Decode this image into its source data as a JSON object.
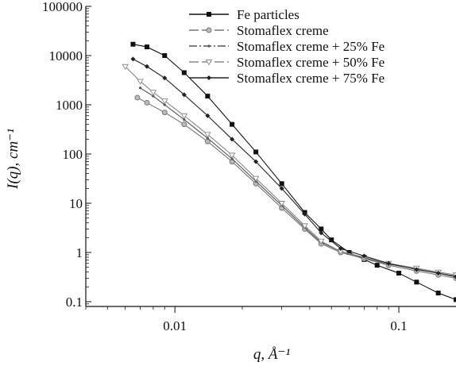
{
  "chart_data": {
    "type": "line",
    "xlabel": "q, Å⁻¹",
    "ylabel": "I(q), cm⁻¹",
    "x_scale": "log",
    "y_scale": "log",
    "xlim": [
      0.004,
      0.18
    ],
    "ylim": [
      0.08,
      100000
    ],
    "x_ticks": [
      {
        "v": 0.01,
        "label": "0.01"
      },
      {
        "v": 0.1,
        "label": "0.1"
      }
    ],
    "y_ticks": [
      {
        "v": 0.1,
        "label": "0.1"
      },
      {
        "v": 1,
        "label": "1"
      },
      {
        "v": 10,
        "label": "10"
      },
      {
        "v": 100,
        "label": "100"
      },
      {
        "v": 1000,
        "label": "1000"
      },
      {
        "v": 10000,
        "label": "10000"
      },
      {
        "v": 100000,
        "label": "100000"
      }
    ],
    "grid": false,
    "legend_position": "top-right",
    "series": [
      {
        "name": "Fe particles",
        "marker": "square",
        "color": "#111111",
        "x": [
          0.0065,
          0.0075,
          0.009,
          0.011,
          0.014,
          0.018,
          0.023,
          0.03,
          0.038,
          0.045,
          0.05,
          0.06,
          0.07,
          0.08,
          0.1,
          0.12,
          0.15,
          0.18
        ],
        "y": [
          17000,
          15000,
          10000,
          4500,
          1500,
          400,
          110,
          25,
          6.5,
          3,
          1.8,
          1.0,
          0.72,
          0.55,
          0.38,
          0.25,
          0.15,
          0.11
        ]
      },
      {
        "name": "Stomaflex creme",
        "marker": "circle",
        "color": "#777777",
        "x": [
          0.0068,
          0.0075,
          0.009,
          0.011,
          0.014,
          0.018,
          0.023,
          0.03,
          0.038,
          0.045,
          0.055,
          0.07,
          0.09,
          0.12,
          0.15,
          0.18
        ],
        "y": [
          1400,
          1100,
          700,
          400,
          180,
          70,
          25,
          8,
          3,
          1.5,
          1.0,
          0.75,
          0.55,
          0.42,
          0.35,
          0.3
        ]
      },
      {
        "name": "Stomaflex creme + 25% Fe",
        "marker": "dot",
        "color": "#555555",
        "x": [
          0.007,
          0.008,
          0.009,
          0.011,
          0.014,
          0.018,
          0.023,
          0.03,
          0.038,
          0.045,
          0.055,
          0.07,
          0.09,
          0.12,
          0.15,
          0.18
        ],
        "y": [
          2200,
          1500,
          1000,
          500,
          210,
          80,
          28,
          9,
          3.2,
          1.6,
          1.05,
          0.78,
          0.58,
          0.46,
          0.38,
          0.33
        ]
      },
      {
        "name": "Stomaflex creme + 50% Fe",
        "marker": "triangle-down",
        "color": "#888888",
        "x": [
          0.006,
          0.007,
          0.008,
          0.009,
          0.011,
          0.014,
          0.018,
          0.023,
          0.03,
          0.038,
          0.045,
          0.055,
          0.07,
          0.09,
          0.12,
          0.15,
          0.18
        ],
        "y": [
          6000,
          3000,
          1800,
          1200,
          600,
          250,
          95,
          32,
          10,
          3.5,
          1.7,
          1.05,
          0.8,
          0.6,
          0.48,
          0.4,
          0.35
        ]
      },
      {
        "name": "Stomaflex creme + 75% Fe",
        "marker": "diamond",
        "color": "#222222",
        "x": [
          0.0065,
          0.0075,
          0.009,
          0.011,
          0.014,
          0.018,
          0.023,
          0.03,
          0.038,
          0.045,
          0.055,
          0.07,
          0.09,
          0.12,
          0.15,
          0.18
        ],
        "y": [
          8500,
          6000,
          3500,
          1600,
          600,
          200,
          70,
          20,
          6,
          2.5,
          1.2,
          0.85,
          0.6,
          0.45,
          0.38,
          0.32
        ]
      }
    ]
  }
}
